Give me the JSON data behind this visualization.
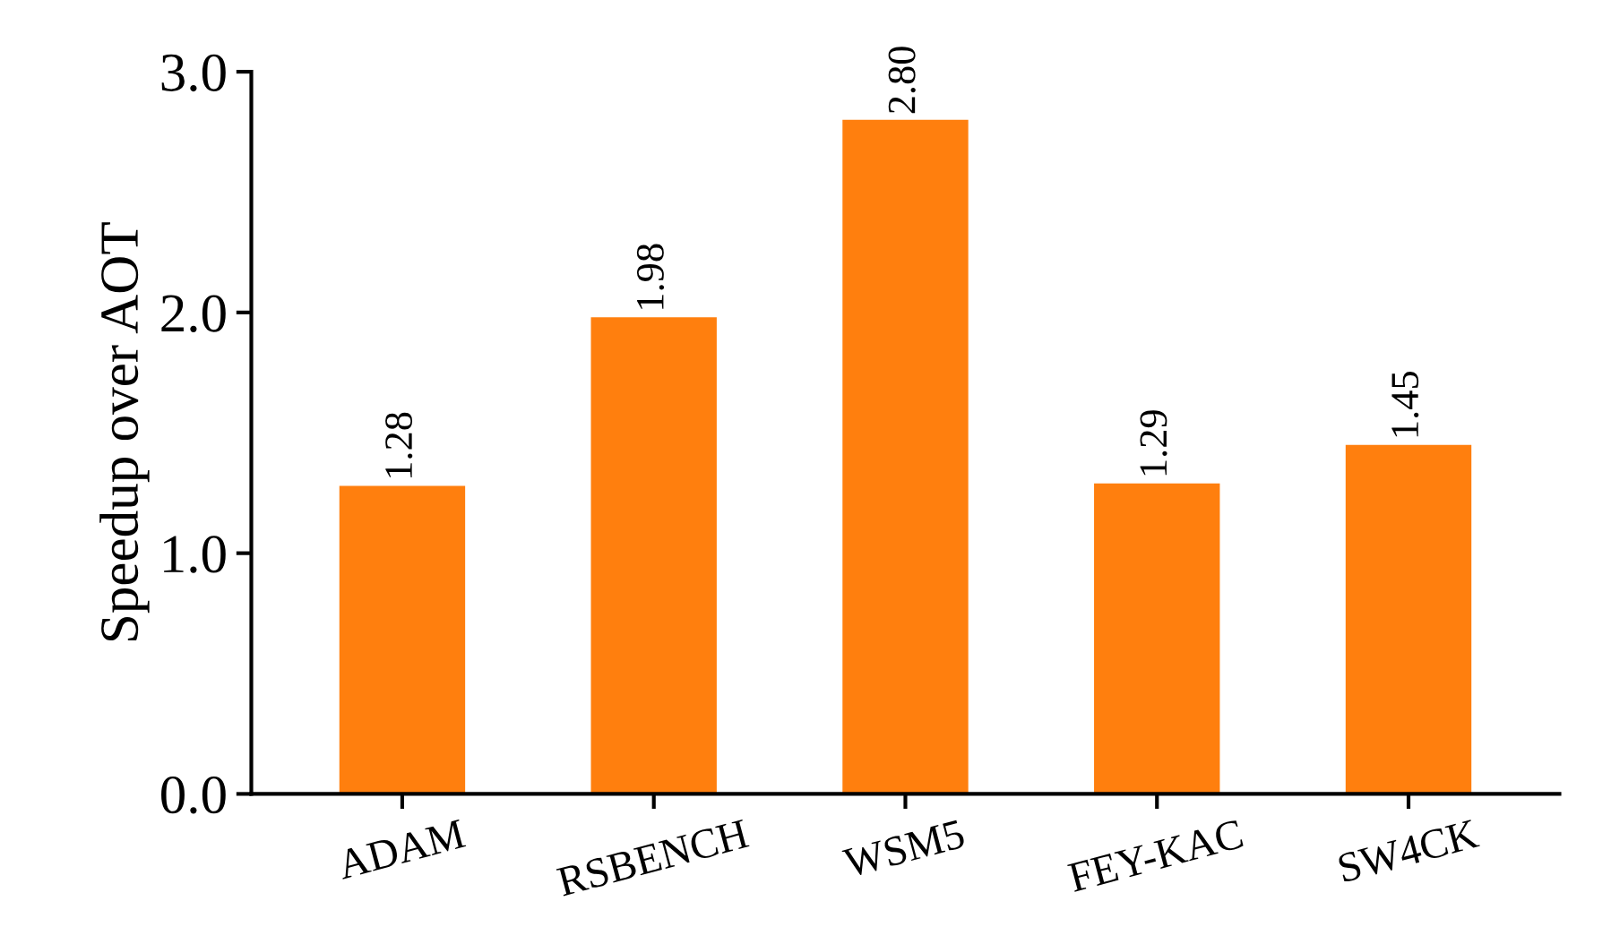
{
  "chart_data": {
    "type": "bar",
    "ylabel": "Speedup over AOT",
    "categories": [
      "ADAM",
      "RSBENCH",
      "WSM5",
      "FEY-KAC",
      "SW4CK"
    ],
    "values": [
      1.28,
      1.98,
      2.8,
      1.29,
      1.45
    ],
    "value_labels": [
      "1.28",
      "1.98",
      "2.80",
      "1.29",
      "1.45"
    ],
    "color": "#ff7f0e",
    "ylim": [
      0,
      3.0
    ],
    "yticks": [
      {
        "value": 0,
        "label": "0.0"
      },
      {
        "value": 1,
        "label": "1.0"
      },
      {
        "value": 2,
        "label": "2.0"
      },
      {
        "value": 3,
        "label": "3.0"
      }
    ],
    "grid": false
  }
}
